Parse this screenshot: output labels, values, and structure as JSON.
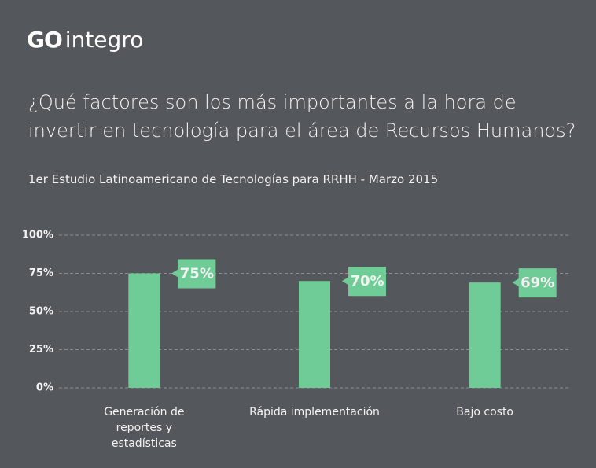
{
  "logo": {
    "mark": "GO",
    "name": "integro"
  },
  "chart_data": {
    "type": "bar",
    "title": "¿Qué factores son los más importantes a la hora de invertir en tecnología para el área de Recursos Humanos?",
    "subtitle": "1er Estudio Latinoamericano de Tecnologías para RRHH - Marzo 2015",
    "categories": [
      "Generación de reportes y estadísticas",
      "Rápida implementación",
      "Bajo costo"
    ],
    "values": [
      75,
      70,
      69
    ],
    "value_labels": [
      "75%",
      "70%",
      "69%"
    ],
    "color": "#6fcc96",
    "ylim": [
      0,
      100
    ],
    "yticks": [
      {
        "value": 0,
        "label": "0%"
      },
      {
        "value": 25,
        "label": "25%"
      },
      {
        "value": 50,
        "label": "50%"
      },
      {
        "value": 75,
        "label": "75%"
      },
      {
        "value": 100,
        "label": "100%"
      }
    ],
    "grid": true
  }
}
